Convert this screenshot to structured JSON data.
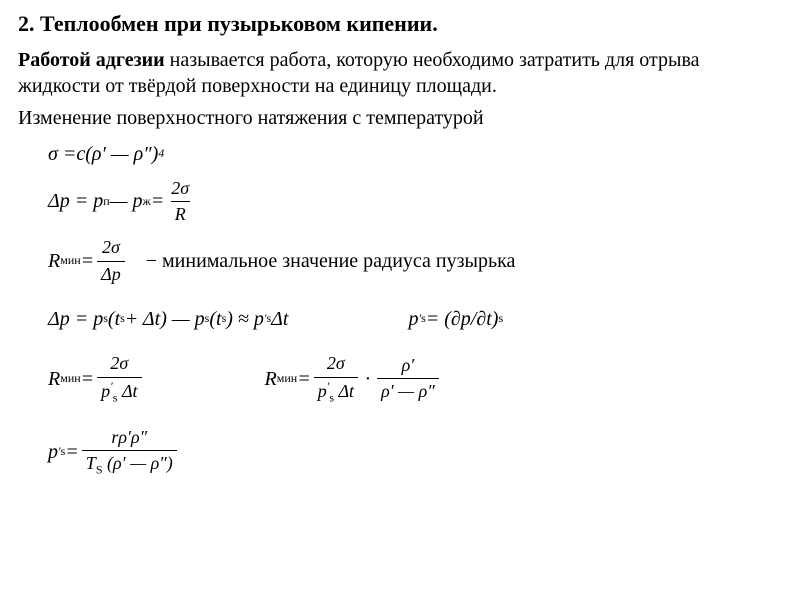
{
  "heading": "2. Теплообмен при пузырьковом кипении.",
  "p1_bold": "Работой адгезии",
  "p1_rest": " называется работа, которую необходимо затратить для отрыва жидкости от твёрдой поверхности на единицу площади.",
  "p2": "Изменение поверхностного натяжения с температурой",
  "eq1_lhs": "σ = ",
  "eq1_c": "c",
  "eq1_paren_l": " (ρ′ — ρ″)",
  "eq1_exp": "4",
  "eq2_lhs": "Δp = p",
  "eq2_s1": "п",
  "eq2_mid": " — p",
  "eq2_s2": "ж",
  "eq2_eq": " = ",
  "eq2_num": "2σ",
  "eq2_den": "R",
  "eq3_R": "R",
  "eq3_sub": "мин",
  "eq3_eq": " = ",
  "eq3_num": "2σ",
  "eq3_den": "Δp",
  "eq3_note": "− минимальное значение радиуса пузырька",
  "eq4_lhs": "Δp = p",
  "eq4_s": "s",
  "eq4_p1": " (t",
  "eq4_p2": " + Δt) — p",
  "eq4_p3": " (t",
  "eq4_p4": ") ≈ p",
  "eq4_prime": "′",
  "eq4_dt": " Δt",
  "eq4b_lhs": "p",
  "eq4b_eq": " = (∂p/∂t)",
  "eq5_num": "2σ",
  "eq5_den1": "p",
  "eq5_den2": " Δt",
  "eq6_fnum": "ρ′",
  "eq6_fden": "ρ′ — ρ″",
  "eq7_lhs": "p",
  "eq7_eq": " = ",
  "eq7_num": "rρ′ρ″",
  "eq7_den1": "T",
  "eq7_den2": "S",
  "eq7_den3": " (ρ′ — ρ″)"
}
